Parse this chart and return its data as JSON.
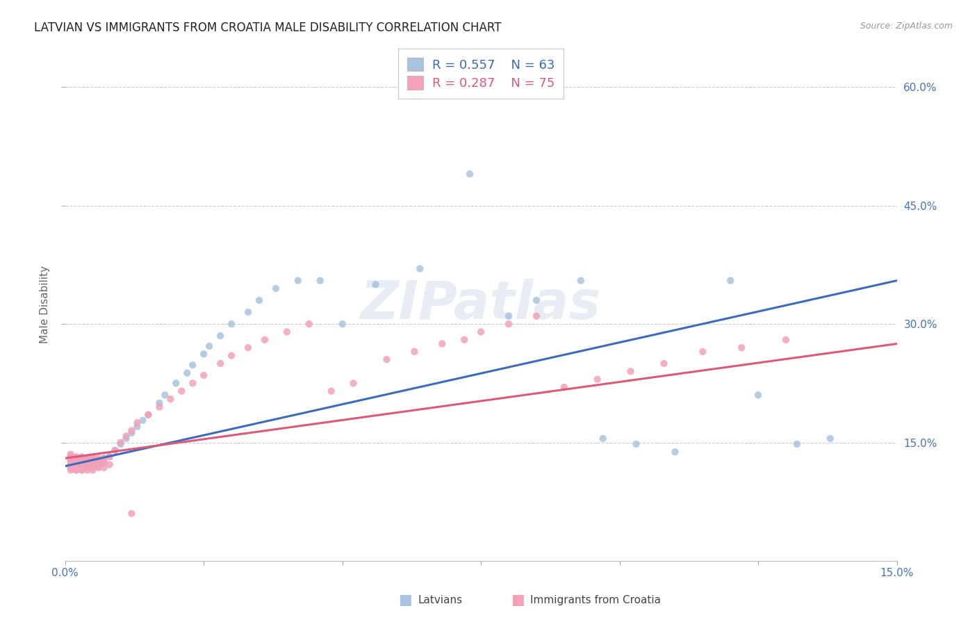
{
  "title": "LATVIAN VS IMMIGRANTS FROM CROATIA MALE DISABILITY CORRELATION CHART",
  "source": "Source: ZipAtlas.com",
  "ylabel": "Male Disability",
  "xlim": [
    0.0,
    0.15
  ],
  "ylim": [
    0.0,
    0.65
  ],
  "xtick_positions": [
    0.0,
    0.025,
    0.05,
    0.075,
    0.1,
    0.125,
    0.15
  ],
  "xtick_labels": [
    "0.0%",
    "",
    "",
    "",
    "",
    "",
    "15.0%"
  ],
  "ytick_positions": [
    0.15,
    0.3,
    0.45,
    0.6
  ],
  "ytick_labels": [
    "15.0%",
    "30.0%",
    "45.0%",
    "60.0%"
  ],
  "latvian_R": 0.557,
  "latvian_N": 63,
  "croatia_R": 0.287,
  "croatia_N": 75,
  "latvian_color": "#a8c4e0",
  "croatia_color": "#f4a0b8",
  "latvian_line_color": "#3a6bbf",
  "croatia_line_color": "#e05878",
  "legend_latvians": "Latvians",
  "legend_croatia": "Immigrants from Croatia",
  "watermark": "ZIPatlas",
  "lv_line_x0": 0.0,
  "lv_line_y0": 0.12,
  "lv_line_x1": 0.15,
  "lv_line_y1": 0.355,
  "cr_line_x0": 0.0,
  "cr_line_y0": 0.13,
  "cr_line_x1": 0.15,
  "cr_line_y1": 0.275,
  "latvian_scatter_x": [
    0.001,
    0.001,
    0.001,
    0.001,
    0.002,
    0.002,
    0.002,
    0.002,
    0.002,
    0.003,
    0.003,
    0.003,
    0.003,
    0.003,
    0.003,
    0.004,
    0.004,
    0.004,
    0.004,
    0.005,
    0.005,
    0.005,
    0.006,
    0.006,
    0.006,
    0.007,
    0.007,
    0.008,
    0.009,
    0.01,
    0.011,
    0.012,
    0.013,
    0.014,
    0.015,
    0.017,
    0.018,
    0.02,
    0.022,
    0.023,
    0.025,
    0.026,
    0.028,
    0.03,
    0.033,
    0.035,
    0.038,
    0.042,
    0.046,
    0.05,
    0.056,
    0.064,
    0.073,
    0.08,
    0.085,
    0.093,
    0.097,
    0.103,
    0.11,
    0.12,
    0.125,
    0.132,
    0.138
  ],
  "latvian_scatter_y": [
    0.122,
    0.128,
    0.118,
    0.132,
    0.12,
    0.125,
    0.115,
    0.13,
    0.118,
    0.122,
    0.128,
    0.115,
    0.125,
    0.132,
    0.118,
    0.12,
    0.128,
    0.122,
    0.13,
    0.125,
    0.118,
    0.132,
    0.12,
    0.128,
    0.122,
    0.13,
    0.125,
    0.132,
    0.14,
    0.148,
    0.155,
    0.162,
    0.17,
    0.178,
    0.185,
    0.2,
    0.21,
    0.225,
    0.238,
    0.248,
    0.262,
    0.272,
    0.285,
    0.3,
    0.315,
    0.33,
    0.345,
    0.355,
    0.355,
    0.3,
    0.35,
    0.37,
    0.49,
    0.31,
    0.33,
    0.355,
    0.155,
    0.148,
    0.138,
    0.355,
    0.21,
    0.148,
    0.155
  ],
  "croatia_scatter_x": [
    0.001,
    0.001,
    0.001,
    0.001,
    0.001,
    0.001,
    0.001,
    0.002,
    0.002,
    0.002,
    0.002,
    0.002,
    0.002,
    0.002,
    0.002,
    0.003,
    0.003,
    0.003,
    0.003,
    0.003,
    0.003,
    0.003,
    0.004,
    0.004,
    0.004,
    0.004,
    0.004,
    0.005,
    0.005,
    0.005,
    0.005,
    0.005,
    0.006,
    0.006,
    0.006,
    0.006,
    0.007,
    0.007,
    0.007,
    0.008,
    0.008,
    0.009,
    0.01,
    0.011,
    0.012,
    0.013,
    0.015,
    0.017,
    0.019,
    0.021,
    0.023,
    0.025,
    0.028,
    0.03,
    0.033,
    0.036,
    0.04,
    0.044,
    0.048,
    0.052,
    0.058,
    0.063,
    0.068,
    0.072,
    0.075,
    0.08,
    0.085,
    0.09,
    0.096,
    0.102,
    0.108,
    0.115,
    0.122,
    0.13,
    0.012
  ],
  "croatia_scatter_y": [
    0.128,
    0.122,
    0.118,
    0.132,
    0.115,
    0.128,
    0.135,
    0.118,
    0.125,
    0.13,
    0.122,
    0.115,
    0.128,
    0.132,
    0.118,
    0.122,
    0.128,
    0.115,
    0.125,
    0.13,
    0.118,
    0.122,
    0.115,
    0.128,
    0.122,
    0.13,
    0.118,
    0.122,
    0.128,
    0.115,
    0.13,
    0.125,
    0.118,
    0.122,
    0.13,
    0.128,
    0.118,
    0.125,
    0.13,
    0.122,
    0.132,
    0.14,
    0.15,
    0.158,
    0.165,
    0.175,
    0.185,
    0.195,
    0.205,
    0.215,
    0.225,
    0.235,
    0.25,
    0.26,
    0.27,
    0.28,
    0.29,
    0.3,
    0.215,
    0.225,
    0.255,
    0.265,
    0.275,
    0.28,
    0.29,
    0.3,
    0.31,
    0.22,
    0.23,
    0.24,
    0.25,
    0.265,
    0.27,
    0.28,
    0.06
  ]
}
